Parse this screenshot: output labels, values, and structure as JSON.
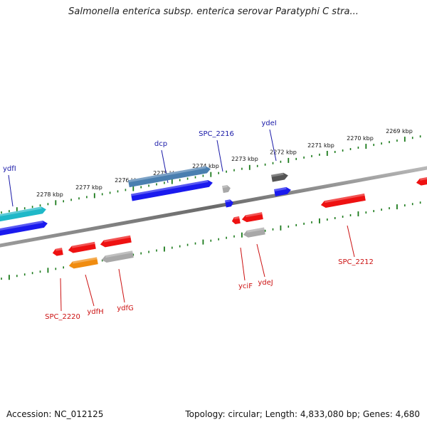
{
  "title": "Salmonella enterica subsp. enterica serovar Paratyphi C stra...",
  "footer": {
    "accession": "Accession: NC_012125",
    "summary": "Topology: circular; Length: 4,833,080 bp; Genes: 4,680"
  },
  "scale_labels": [
    "2278 kbp",
    "2277 kbp",
    "2276 kbp",
    "2275 kbp",
    "2274 kbp",
    "2273 kbp",
    "2272 kbp",
    "2271 kbp",
    "2270 kbp",
    "2269 kbp"
  ],
  "colors": {
    "tick": "#1a7a1a",
    "label_forward": "#1a1aa8",
    "label_reverse": "#cc1111",
    "backbone": "#808080"
  },
  "genes_forward": [
    {
      "name": "ydfI",
      "color": "#1fb8c8"
    },
    {
      "name": "",
      "color": "#1a1aee"
    },
    {
      "name": "dcp",
      "color": "#4a7fb0"
    },
    {
      "name": "",
      "color": "#1a1aee"
    },
    {
      "name": "SPC_2216",
      "color": "#a8a8a8"
    },
    {
      "name": "",
      "color": "#1a1aee"
    },
    {
      "name": "ydeI",
      "color": "#555555"
    },
    {
      "name": "",
      "color": "#1a1aee"
    }
  ],
  "genes_reverse": [
    {
      "name": "SPC_2220",
      "color": "#ee1111"
    },
    {
      "name": "",
      "color": "#ee1111"
    },
    {
      "name": "ydfH",
      "color": "#f08c10"
    },
    {
      "name": "",
      "color": "#ee1111"
    },
    {
      "name": "ydfG",
      "color": "#a8a8a8"
    },
    {
      "name": "yciF",
      "color": "#ee1111"
    },
    {
      "name": "",
      "color": "#ee1111"
    },
    {
      "name": "ydeJ",
      "color": "#a8a8a8"
    },
    {
      "name": "SPC_2212",
      "color": "#ee1111"
    },
    {
      "name": "",
      "color": "#ee1111"
    }
  ]
}
